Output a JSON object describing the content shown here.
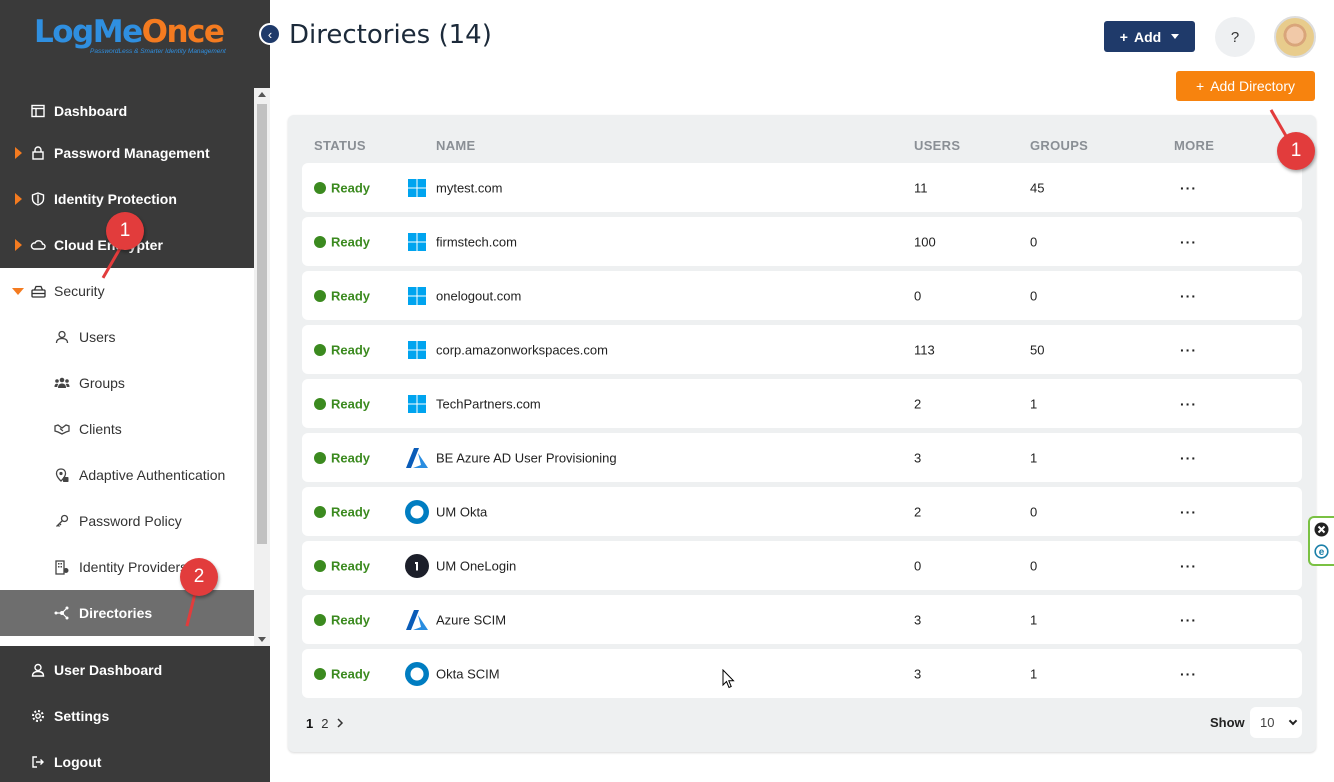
{
  "app": {
    "logo_main": "LogMe",
    "logo_accent": "Once",
    "logo_tagline": "PasswordLess & Smarter Identity Management"
  },
  "sidebar": {
    "items": [
      {
        "label": "Dashboard",
        "icon": "dashboard-icon"
      },
      {
        "label": "Password Management",
        "icon": "lock-icon"
      },
      {
        "label": "Identity Protection",
        "icon": "shield-icon"
      },
      {
        "label": "Cloud Encrypter",
        "icon": "cloud-icon"
      },
      {
        "label": "Security",
        "icon": "security-icon"
      }
    ],
    "security_subitems": [
      {
        "label": "Users",
        "icon": "user-icon"
      },
      {
        "label": "Groups",
        "icon": "groups-icon"
      },
      {
        "label": "Clients",
        "icon": "handshake-icon"
      },
      {
        "label": "Adaptive Authentication",
        "icon": "adaptive-auth-icon"
      },
      {
        "label": "Password Policy",
        "icon": "key-icon"
      },
      {
        "label": "Identity Providers",
        "icon": "building-icon"
      },
      {
        "label": "Directories",
        "icon": "directory-network-icon"
      }
    ],
    "bottom_items": [
      {
        "label": "User Dashboard",
        "icon": "user-icon"
      },
      {
        "label": "Settings",
        "icon": "gear-icon"
      },
      {
        "label": "Logout",
        "icon": "logout-icon"
      }
    ]
  },
  "header": {
    "title": "Directories (14)",
    "add_label": "Add",
    "help_label": "?",
    "add_directory_label": "Add Directory"
  },
  "table": {
    "columns": {
      "status": "STATUS",
      "name": "NAME",
      "users": "USERS",
      "groups": "GROUPS",
      "more": "MORE"
    },
    "rows": [
      {
        "status": "Ready",
        "type": "windows",
        "name": "mytest.com",
        "users": "11",
        "groups": "45",
        "more": "···"
      },
      {
        "status": "Ready",
        "type": "windows",
        "name": "firmstech.com",
        "users": "100",
        "groups": "0",
        "more": "···"
      },
      {
        "status": "Ready",
        "type": "windows",
        "name": "onelogout.com",
        "users": "0",
        "groups": "0",
        "more": "···"
      },
      {
        "status": "Ready",
        "type": "windows",
        "name": "corp.amazonworkspaces.com",
        "users": "113",
        "groups": "50",
        "more": "···"
      },
      {
        "status": "Ready",
        "type": "windows",
        "name": "TechPartners.com",
        "users": "2",
        "groups": "1",
        "more": "···"
      },
      {
        "status": "Ready",
        "type": "azure",
        "name": "BE Azure AD User Provisioning",
        "users": "3",
        "groups": "1",
        "more": "···"
      },
      {
        "status": "Ready",
        "type": "okta",
        "name": "UM Okta",
        "users": "2",
        "groups": "0",
        "more": "···"
      },
      {
        "status": "Ready",
        "type": "onelogin",
        "name": "UM OneLogin",
        "users": "0",
        "groups": "0",
        "more": "···"
      },
      {
        "status": "Ready",
        "type": "azure",
        "name": "Azure SCIM",
        "users": "3",
        "groups": "1",
        "more": "···"
      },
      {
        "status": "Ready",
        "type": "okta",
        "name": "Okta SCIM",
        "users": "3",
        "groups": "1",
        "more": "···"
      }
    ]
  },
  "pagination": {
    "current": "1",
    "next_page": "2",
    "show_label": "Show",
    "page_size": "10"
  },
  "annotations": {
    "badge_1": "1",
    "badge_2": "2"
  },
  "colors": {
    "status_ready": "#3b8a1f",
    "accent_orange": "#f7830e",
    "primary_navy": "#1f3a6a",
    "badge_red": "#e23c3c"
  }
}
